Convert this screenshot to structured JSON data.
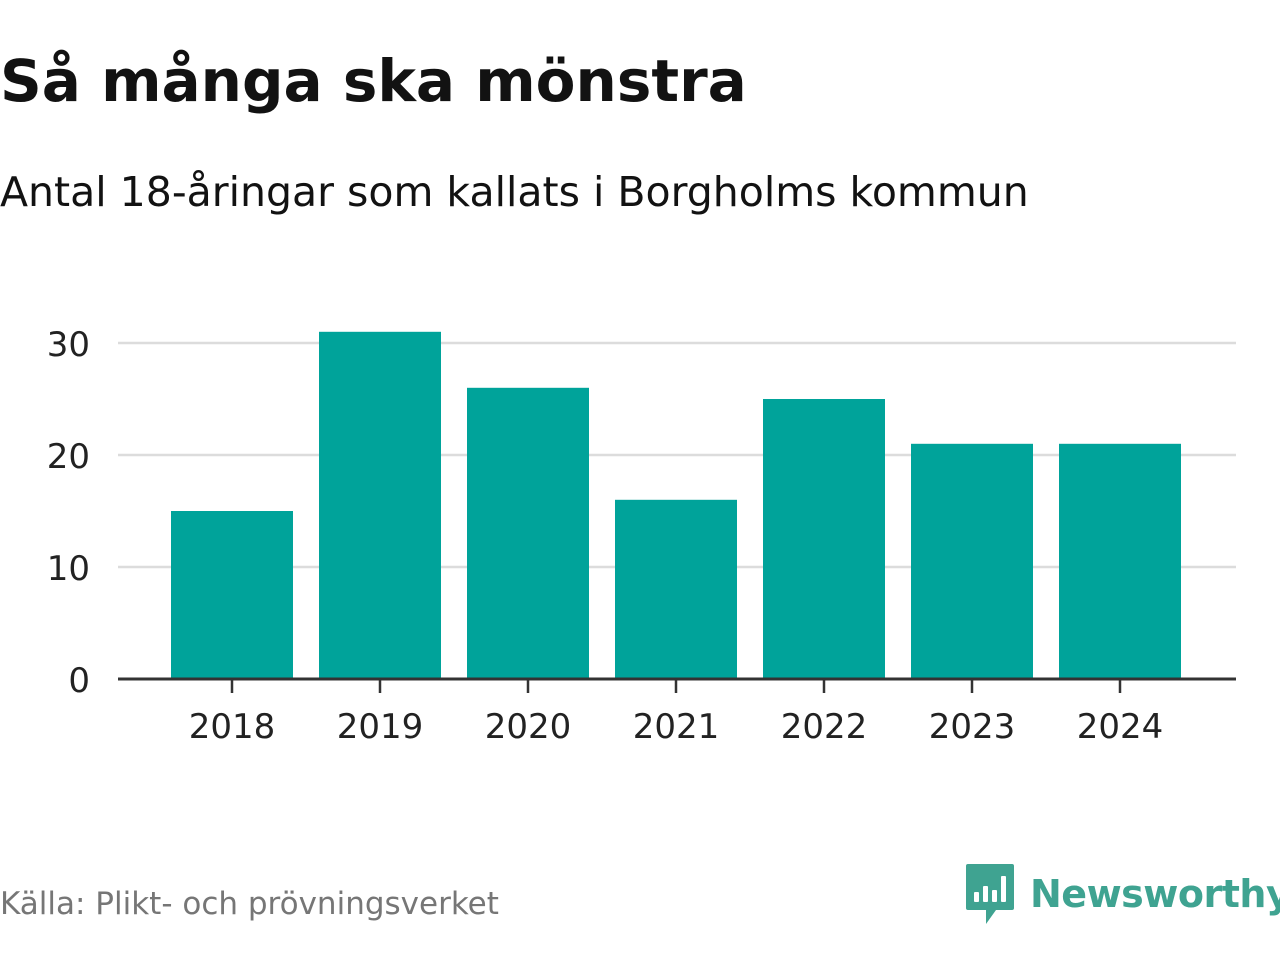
{
  "title": "Så många ska mönstra",
  "subtitle": "Antal 18-åringar som kallats i Borgholms kommun",
  "source": "Källa: Plikt- och prövningsverket",
  "brand": {
    "name": "Newsworthy",
    "icon": "newsworthy-logo-icon",
    "color": "#3fa391"
  },
  "colors": {
    "bar": "#00a39a",
    "grid": "#dcdcdc",
    "axis": "#333333",
    "tick_text": "#222222"
  },
  "chart_data": {
    "type": "bar",
    "categories": [
      "2018",
      "2019",
      "2020",
      "2021",
      "2022",
      "2023",
      "2024"
    ],
    "values": [
      15,
      31,
      26,
      16,
      25,
      21,
      21
    ],
    "title": "Så många ska mönstra",
    "subtitle": "Antal 18-åringar som kallats i Borgholms kommun",
    "xlabel": "",
    "ylabel": "",
    "ylim": [
      0,
      30
    ],
    "yticks": [
      0,
      10,
      20,
      30
    ],
    "grid": true,
    "legend": "none"
  }
}
